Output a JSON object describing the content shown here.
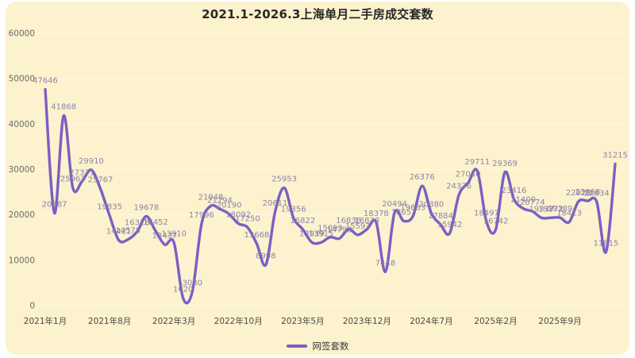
{
  "title": "2021.1-2026.3上海单月二手房成交套数",
  "legend": {
    "label": "网签套数"
  },
  "colors": {
    "background": "#fcf2cd",
    "line": "#7c5ec4",
    "point_label": "#897ea8",
    "gridline": "rgba(255,255,255,0.55)",
    "axis_text": "#4a4a4a",
    "title_text": "#282828"
  },
  "chart_data": {
    "type": "line",
    "title": "2021.1-2026.3上海单月二手房成交套数",
    "legend": "网签套数",
    "legend_position": "bottom",
    "grid": true,
    "smooth": true,
    "ylim": [
      0,
      60000
    ],
    "y_ticks": [
      0,
      10000,
      20000,
      30000,
      40000,
      50000,
      60000
    ],
    "x_tick_labels": [
      {
        "index": 0,
        "label": "2021年1月"
      },
      {
        "index": 7,
        "label": "2021年8月"
      },
      {
        "index": 14,
        "label": "2022年3月"
      },
      {
        "index": 21,
        "label": "2022年10月"
      },
      {
        "index": 28,
        "label": "2023年5月"
      },
      {
        "index": 35,
        "label": "2023年12月"
      },
      {
        "index": 42,
        "label": "2024年7月"
      },
      {
        "index": 49,
        "label": "2025年2月"
      },
      {
        "index": 56,
        "label": "2025年9月"
      }
    ],
    "values": [
      47646,
      20387,
      41868,
      25963,
      27371,
      29910,
      25767,
      19835,
      14421,
      14578,
      16318,
      19678,
      16452,
      13437,
      13910,
      1620,
      3080,
      17996,
      21948,
      21294,
      20190,
      18092,
      17250,
      13668,
      8998,
      20611,
      25953,
      19356,
      16822,
      13939,
      13915,
      15093,
      14793,
      16836,
      15593,
      16833,
      18378,
      7448,
      20494,
      18653,
      19683,
      26376,
      20380,
      17884,
      15942,
      24376,
      27050,
      29711,
      18497,
      16742,
      29369,
      23416,
      21400,
      20774,
      19337,
      19372,
      19389,
      18413,
      22928,
      23068,
      22834,
      11815,
      31215
    ]
  }
}
